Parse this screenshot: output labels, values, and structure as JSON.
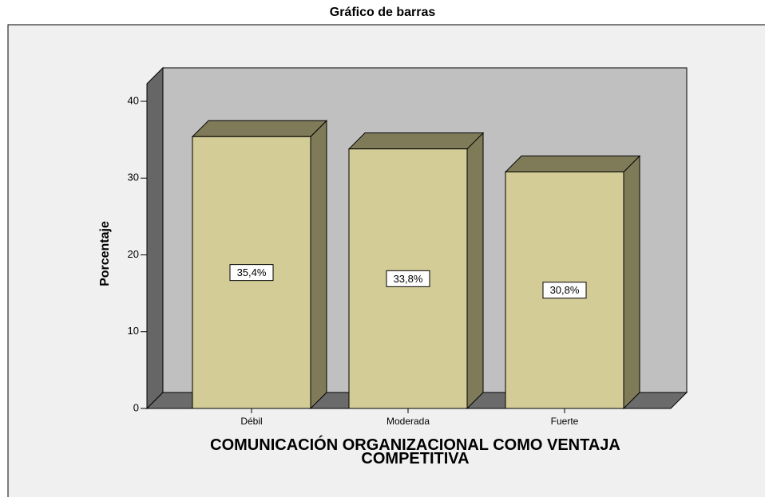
{
  "chart_data": {
    "type": "bar3d",
    "title": "Gráfico de barras",
    "xlabel": "COMUNICACIÓN ORGANIZACIONAL COMO VENTAJA COMPETITIVA",
    "ylabel": "Porcentaje",
    "categories": [
      "Débil",
      "Moderada",
      "Fuerte"
    ],
    "values": [
      35.4,
      33.8,
      30.8
    ],
    "value_labels": [
      "35,4%",
      "33,8%",
      "30,8%"
    ],
    "color": "#d3cc97",
    "ylim": [
      0,
      40
    ],
    "yticks": [
      0,
      10,
      20,
      30,
      40
    ],
    "grid": false
  }
}
